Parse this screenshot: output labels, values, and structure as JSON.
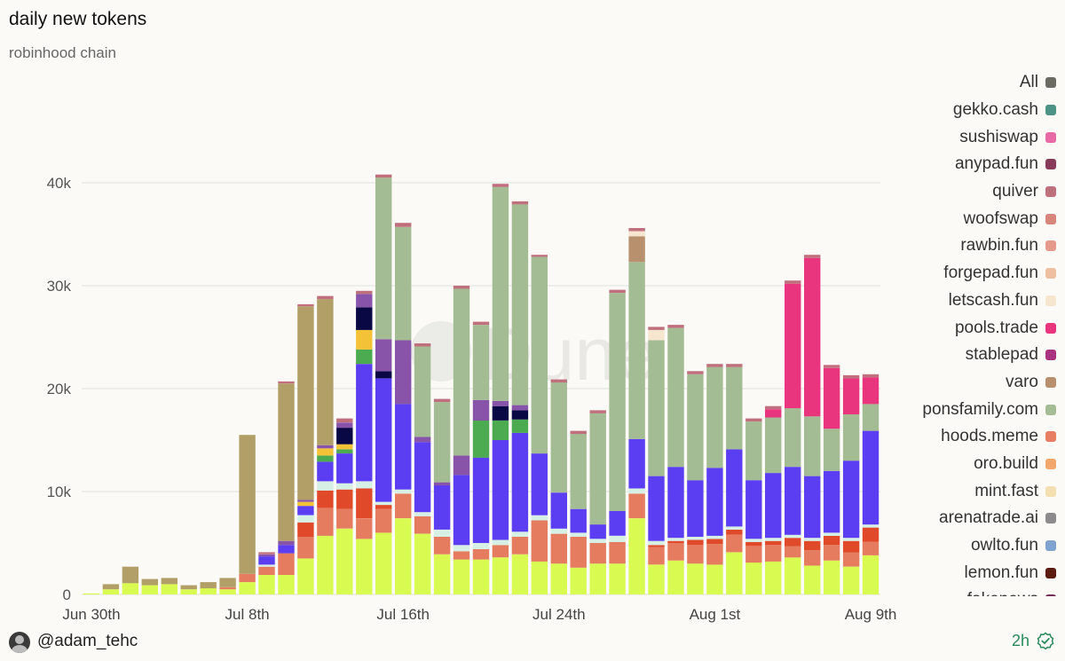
{
  "header": {
    "title": "daily new tokens",
    "subtitle": "robinhood chain"
  },
  "footer": {
    "username": "@adam_tehc",
    "age": "2h"
  },
  "watermark": "Dune",
  "legend": [
    {
      "label": "All",
      "color": "#6b6b64"
    },
    {
      "label": "gekko.cash",
      "color": "#4f9385"
    },
    {
      "label": "sushiswap",
      "color": "#e76aa6"
    },
    {
      "label": "anypad.fun",
      "color": "#8a3b5a"
    },
    {
      "label": "quiver",
      "color": "#c0707c"
    },
    {
      "label": "woofswap",
      "color": "#d8857c"
    },
    {
      "label": "rawbin.fun",
      "color": "#e59a8a"
    },
    {
      "label": "forgepad.fun",
      "color": "#efbfa2"
    },
    {
      "label": "letscash.fun",
      "color": "#f6e6cf"
    },
    {
      "label": "pools.trade",
      "color": "#e8357d"
    },
    {
      "label": "stablepad",
      "color": "#a8327e"
    },
    {
      "label": "varo",
      "color": "#b8906e"
    },
    {
      "label": "ponsfamily.com",
      "color": "#a4bc94"
    },
    {
      "label": "hoods.meme",
      "color": "#e77d63"
    },
    {
      "label": "oro.build",
      "color": "#f1a76c"
    },
    {
      "label": "mint.fast",
      "color": "#f4dfb0"
    },
    {
      "label": "arenatrade.ai",
      "color": "#8b8b8b"
    },
    {
      "label": "owlto.fun",
      "color": "#7ea4cf"
    },
    {
      "label": "lemon.fun",
      "color": "#5e1b0f"
    },
    {
      "label": "fakenews",
      "color": "#7a2b55"
    }
  ],
  "chart_data": {
    "type": "bar",
    "stacked": true,
    "ylim": [
      0,
      50000
    ],
    "yticks": [
      0,
      10000,
      20000,
      30000,
      40000
    ],
    "ytick_labels": [
      "0",
      "10k",
      "20k",
      "30k",
      "40k"
    ],
    "xtick_labels": [
      {
        "label": "Jun 30th",
        "index": 0
      },
      {
        "label": "Jul 8th",
        "index": 8
      },
      {
        "label": "Jul 16th",
        "index": 16
      },
      {
        "label": "Jul 24th",
        "index": 24
      },
      {
        "label": "Aug 1st",
        "index": 32
      },
      {
        "label": "Aug 9th",
        "index": 40
      }
    ],
    "categories": [
      "Jun 30",
      "Jul 1",
      "Jul 2",
      "Jul 3",
      "Jul 4",
      "Jul 5",
      "Jul 6",
      "Jul 7",
      "Jul 8",
      "Jul 9",
      "Jul 10",
      "Jul 11",
      "Jul 12",
      "Jul 13",
      "Jul 14",
      "Jul 15",
      "Jul 16",
      "Jul 17",
      "Jul 18",
      "Jul 19",
      "Jul 20",
      "Jul 21",
      "Jul 22",
      "Jul 23",
      "Jul 24",
      "Jul 25",
      "Jul 26",
      "Jul 27",
      "Jul 28",
      "Jul 29",
      "Jul 30",
      "Jul 31",
      "Aug 1",
      "Aug 2",
      "Aug 3",
      "Aug 4",
      "Aug 5",
      "Aug 6",
      "Aug 7",
      "Aug 8",
      "Aug 9"
    ],
    "series": [
      {
        "color": "#d9fa50",
        "values": [
          100,
          500,
          1100,
          900,
          1000,
          500,
          600,
          500,
          1200,
          1900,
          1900,
          3500,
          5700,
          6400,
          5400,
          6000,
          7400,
          5900,
          3900,
          3400,
          3400,
          3600,
          3900,
          3200,
          3000,
          2600,
          3000,
          3000,
          7400,
          2900,
          3300,
          3000,
          2900,
          4100,
          3100,
          3200,
          3600,
          2800,
          3300,
          2700,
          3800
        ]
      },
      {
        "color": "#e57c5f",
        "values": [
          0,
          0,
          0,
          0,
          0,
          0,
          0,
          200,
          800,
          800,
          2100,
          2100,
          2700,
          1900,
          2000,
          2300,
          2400,
          1700,
          1700,
          800,
          1000,
          1200,
          1700,
          4000,
          2900,
          3000,
          2000,
          2100,
          2400,
          1700,
          1700,
          1800,
          2000,
          1700,
          1600,
          1600,
          1100,
          1500,
          1500,
          1400,
          1300
        ]
      },
      {
        "color": "#e04a2a",
        "values": [
          0,
          0,
          0,
          0,
          0,
          0,
          0,
          0,
          0,
          0,
          0,
          1400,
          1700,
          1900,
          2900,
          400,
          0,
          0,
          0,
          0,
          0,
          0,
          0,
          0,
          0,
          0,
          0,
          0,
          0,
          200,
          200,
          500,
          500,
          500,
          400,
          400,
          800,
          900,
          900,
          1100,
          1400
        ]
      },
      {
        "color": "#d6f0e6",
        "values": [
          0,
          0,
          0,
          0,
          0,
          0,
          0,
          0,
          0,
          200,
          0,
          700,
          900,
          600,
          700,
          300,
          400,
          400,
          700,
          600,
          600,
          500,
          500,
          500,
          500,
          400,
          400,
          600,
          500,
          400,
          300,
          300,
          300,
          300,
          300,
          300,
          300,
          300,
          300,
          300,
          300
        ]
      },
      {
        "color": "#5b3ef2",
        "values": [
          0,
          0,
          0,
          0,
          0,
          0,
          0,
          0,
          0,
          800,
          800,
          900,
          1900,
          2900,
          11400,
          12000,
          8300,
          6800,
          4300,
          6800,
          8300,
          9700,
          9600,
          6000,
          3500,
          2300,
          1400,
          2400,
          4800,
          6300,
          6900,
          5500,
          6600,
          7500,
          5700,
          6300,
          6600,
          6000,
          6000,
          7500,
          9100
        ]
      },
      {
        "color": "#4caa50",
        "values": [
          0,
          0,
          0,
          0,
          0,
          0,
          0,
          0,
          0,
          0,
          0,
          0,
          600,
          400,
          1400,
          0,
          0,
          0,
          0,
          0,
          3600,
          1900,
          1300,
          0,
          0,
          0,
          0,
          0,
          0,
          0,
          0,
          0,
          0,
          0,
          0,
          0,
          0,
          0,
          0,
          0,
          0
        ]
      },
      {
        "color": "#f4c237",
        "values": [
          0,
          0,
          0,
          0,
          0,
          0,
          0,
          0,
          0,
          0,
          0,
          400,
          700,
          500,
          1900,
          0,
          0,
          0,
          0,
          0,
          0,
          0,
          0,
          0,
          0,
          0,
          0,
          0,
          0,
          0,
          0,
          0,
          0,
          0,
          0,
          0,
          0,
          0,
          0,
          0,
          0
        ]
      },
      {
        "color": "#0a0745",
        "values": [
          0,
          0,
          0,
          0,
          0,
          0,
          0,
          0,
          0,
          0,
          0,
          0,
          0,
          1600,
          2200,
          700,
          0,
          0,
          0,
          0,
          0,
          1400,
          900,
          0,
          0,
          0,
          0,
          0,
          0,
          0,
          0,
          0,
          0,
          0,
          0,
          0,
          0,
          0,
          0,
          0,
          0
        ]
      },
      {
        "color": "#8754aa",
        "values": [
          0,
          0,
          0,
          0,
          0,
          0,
          0,
          0,
          0,
          200,
          400,
          200,
          300,
          500,
          1300,
          3100,
          6200,
          500,
          300,
          1900,
          2000,
          500,
          500,
          0,
          0,
          0,
          0,
          0,
          0,
          0,
          0,
          0,
          0,
          0,
          0,
          0,
          0,
          0,
          0,
          0,
          0
        ]
      },
      {
        "color": "#a4bc94",
        "values": [
          0,
          0,
          0,
          0,
          0,
          0,
          0,
          0,
          0,
          0,
          0,
          0,
          0,
          0,
          0,
          15700,
          11000,
          8800,
          7800,
          16200,
          7300,
          20800,
          19500,
          19100,
          10700,
          7300,
          10800,
          21200,
          17200,
          13200,
          13500,
          10300,
          9800,
          8000,
          5700,
          5400,
          5700,
          5800,
          4100,
          4500,
          2600
        ]
      },
      {
        "color": "#e8357d",
        "values": [
          0,
          0,
          0,
          0,
          0,
          0,
          0,
          0,
          0,
          0,
          0,
          0,
          0,
          0,
          0,
          0,
          0,
          0,
          0,
          0,
          0,
          0,
          0,
          0,
          0,
          0,
          0,
          0,
          0,
          0,
          0,
          0,
          0,
          0,
          0,
          800,
          12100,
          15400,
          5900,
          3500,
          2600
        ]
      },
      {
        "color": "#b29f68",
        "values": [
          0,
          500,
          1600,
          600,
          600,
          400,
          600,
          900,
          13500,
          0,
          15300,
          18800,
          14200,
          0,
          0,
          0,
          0,
          0,
          0,
          0,
          0,
          0,
          0,
          0,
          0,
          0,
          0,
          0,
          0,
          0,
          0,
          0,
          0,
          0,
          0,
          0,
          0,
          0,
          0,
          0,
          0
        ]
      },
      {
        "color": "#b8906e",
        "values": [
          0,
          0,
          0,
          0,
          0,
          0,
          0,
          0,
          0,
          0,
          0,
          0,
          0,
          0,
          0,
          0,
          0,
          0,
          0,
          0,
          0,
          0,
          0,
          0,
          0,
          0,
          0,
          0,
          2500,
          0,
          0,
          0,
          0,
          0,
          0,
          0,
          0,
          0,
          0,
          0,
          0
        ]
      },
      {
        "color": "#f6e6cf",
        "values": [
          0,
          0,
          0,
          0,
          0,
          0,
          0,
          0,
          0,
          0,
          0,
          0,
          0,
          0,
          0,
          0,
          0,
          0,
          0,
          0,
          0,
          0,
          0,
          0,
          0,
          0,
          0,
          0,
          500,
          1000,
          0,
          0,
          0,
          0,
          0,
          0,
          0,
          0,
          0,
          0,
          0
        ]
      },
      {
        "color": "#c0707c",
        "values": [
          0,
          0,
          0,
          0,
          0,
          0,
          0,
          0,
          0,
          200,
          200,
          200,
          300,
          400,
          300,
          300,
          400,
          300,
          300,
          300,
          300,
          300,
          300,
          200,
          300,
          300,
          300,
          300,
          300,
          300,
          300,
          300,
          300,
          300,
          300,
          300,
          300,
          300,
          300,
          300,
          300
        ]
      }
    ]
  }
}
